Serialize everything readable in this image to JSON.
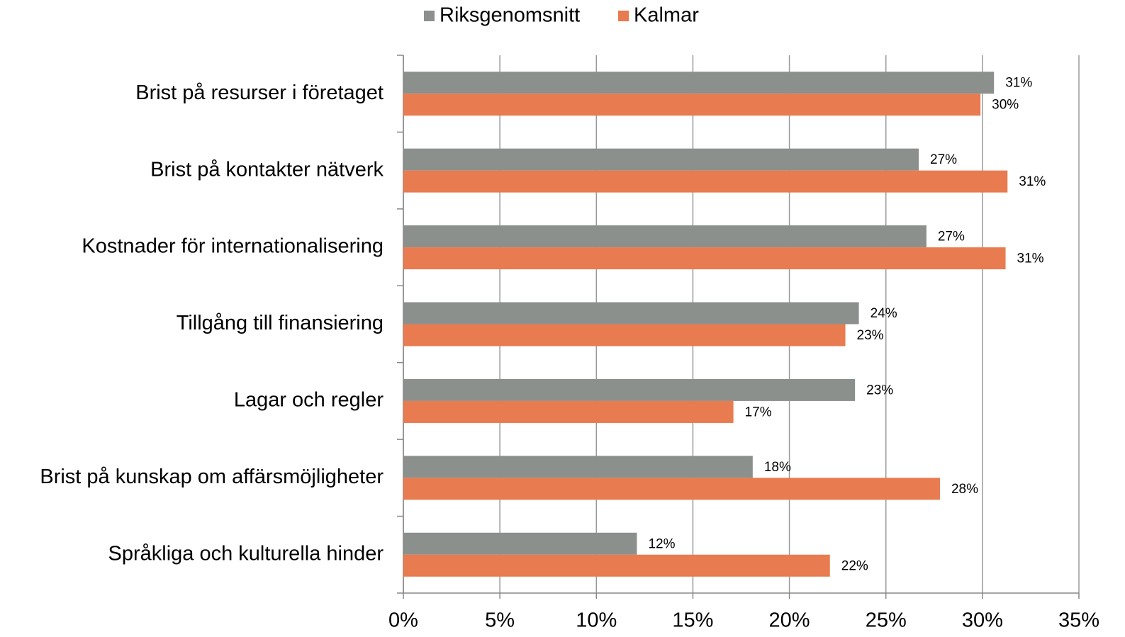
{
  "chart_data": {
    "type": "hbar",
    "categories": [
      "Brist på resurser i företaget",
      "Brist på kontakter nätverk",
      "Kostnader för internationalisering",
      "Tillgång till finansiering",
      "Lagar och regler",
      "Brist på kunskap om affärsmöjligheter",
      "Språkliga och kulturella hinder"
    ],
    "series": [
      {
        "name": "Riksgenomsnitt",
        "color": "#8c908d",
        "values": [
          30.6,
          26.7,
          27.1,
          23.6,
          23.4,
          18.1,
          12.1
        ],
        "value_labels": [
          "31%",
          "27%",
          "27%",
          "24%",
          "23%",
          "18%",
          "12%"
        ]
      },
      {
        "name": "Kalmar",
        "color": "#e87b4f",
        "values": [
          29.9,
          31.3,
          31.2,
          22.9,
          17.1,
          27.8,
          22.1
        ],
        "value_labels": [
          "30%",
          "31%",
          "31%",
          "23%",
          "17%",
          "28%",
          "22%"
        ]
      }
    ],
    "xlim": [
      0,
      35
    ],
    "xticks": [
      {
        "value": 0,
        "label": "0%"
      },
      {
        "value": 5,
        "label": "5%"
      },
      {
        "value": 10,
        "label": "10%"
      },
      {
        "value": 15,
        "label": "15%"
      },
      {
        "value": 20,
        "label": "20%"
      },
      {
        "value": 25,
        "label": "25%"
      },
      {
        "value": 30,
        "label": "30%"
      },
      {
        "value": 35,
        "label": "35%"
      }
    ],
    "grid": true,
    "legend": "top"
  }
}
